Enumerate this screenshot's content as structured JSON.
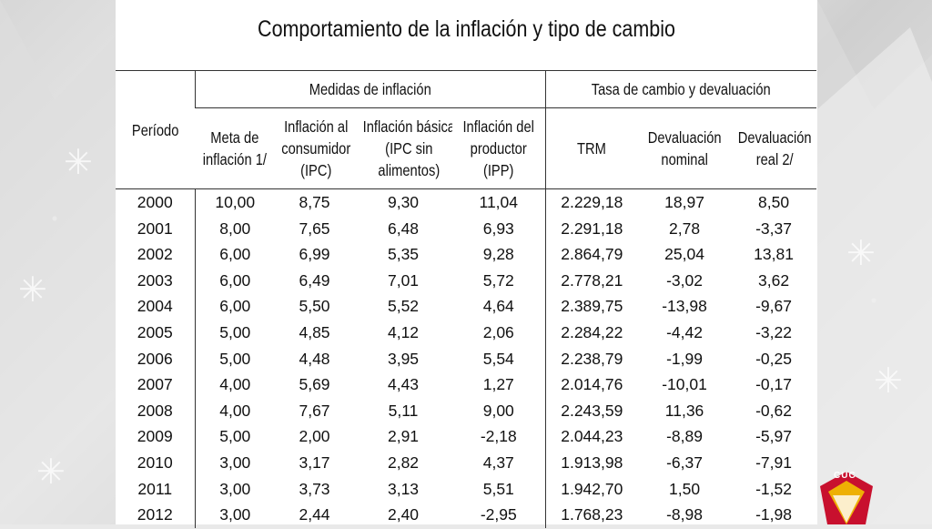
{
  "title": "Comportamiento de la inflación y tipo de cambio",
  "table": {
    "period_header": "Período",
    "group_inflation": "Medidas de inflación",
    "group_exchange": "Tasa de cambio y devaluación",
    "columns": [
      [
        "Meta de",
        "inflación 1/"
      ],
      [
        "Inflación al",
        "consumidor",
        "(IPC)"
      ],
      [
        "Inflación básica",
        "(IPC sin",
        "alimentos)"
      ],
      [
        "Inflación del",
        "productor",
        "(IPP)"
      ],
      [
        "TRM"
      ],
      [
        "Devaluación",
        "nominal"
      ],
      [
        "Devaluación",
        "real  2/"
      ]
    ],
    "rows": [
      [
        "2000",
        "10,00",
        "8,75",
        "9,30",
        "11,04",
        "2.229,18",
        "18,97",
        "8,50"
      ],
      [
        "2001",
        "8,00",
        "7,65",
        "6,48",
        "6,93",
        "2.291,18",
        "2,78",
        "-3,37"
      ],
      [
        "2002",
        "6,00",
        "6,99",
        "5,35",
        "9,28",
        "2.864,79",
        "25,04",
        "13,81"
      ],
      [
        "2003",
        "6,00",
        "6,49",
        "7,01",
        "5,72",
        "2.778,21",
        "-3,02",
        "3,62"
      ],
      [
        "2004",
        "6,00",
        "5,50",
        "5,52",
        "4,64",
        "2.389,75",
        "-13,98",
        "-9,67"
      ],
      [
        "2005",
        "5,00",
        "4,85",
        "4,12",
        "2,06",
        "2.284,22",
        "-4,42",
        "-3,22"
      ],
      [
        "2006",
        "5,00",
        "4,48",
        "3,95",
        "5,54",
        "2.238,79",
        "-1,99",
        "-0,25"
      ],
      [
        "2007",
        "4,00",
        "5,69",
        "4,43",
        "1,27",
        "2.014,76",
        "-10,01",
        "-0,17"
      ],
      [
        "2008",
        "4,00",
        "7,67",
        "5,11",
        "9,00",
        "2.243,59",
        "11,36",
        "-0,62"
      ],
      [
        "2009",
        "5,00",
        "2,00",
        "2,91",
        "-2,18",
        "2.044,23",
        "-8,89",
        "-5,97"
      ],
      [
        "2010",
        "3,00",
        "3,17",
        "2,82",
        "4,37",
        "1.913,98",
        "-6,37",
        "-7,91"
      ],
      [
        "2011",
        "3,00",
        "3,73",
        "3,13",
        "5,51",
        "1.942,70",
        "1,50",
        "-1,52"
      ],
      [
        "2012",
        "3,00",
        "2,44",
        "2,40",
        "-2,95",
        "1.768,23",
        "-8,98",
        "-1,98"
      ]
    ]
  },
  "logo": {
    "text": "CUC",
    "icon": "cuc-logo-icon",
    "color": "#c8102e"
  }
}
